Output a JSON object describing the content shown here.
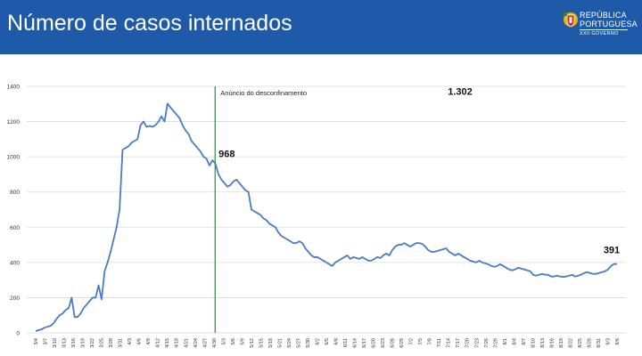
{
  "header": {
    "title": "Número de casos internados",
    "logo": {
      "line1": "REPÚBLICA",
      "line2": "PORTUGUESA",
      "line3": "XXII GOVERNO",
      "mark_icon": "portuguese-coat-of-arms-icon"
    },
    "bg_color": "#1f5aa8"
  },
  "chart_data": {
    "type": "line",
    "title": "",
    "xlabel": "",
    "ylabel": "",
    "ylim": [
      0,
      1400
    ],
    "y_ticks": [
      "0",
      "200",
      "400",
      "600",
      "800",
      "1000",
      "1200",
      "1400"
    ],
    "grid": true,
    "legend": "none",
    "line_color": "#4a7bc4",
    "annotation_line_color": "#22b14c",
    "x_ticks": [
      "3/4",
      "3/7",
      "3/10",
      "3/13",
      "3/16",
      "3/19",
      "3/22",
      "3/25",
      "3/28",
      "3/31",
      "4/3",
      "4/6",
      "4/9",
      "4/12",
      "4/15",
      "4/18",
      "4/21",
      "4/24",
      "4/27",
      "4/30",
      "5/3",
      "5/6",
      "5/9",
      "5/12",
      "5/15",
      "5/18",
      "5/21",
      "5/24",
      "5/27",
      "5/30",
      "6/2",
      "6/5",
      "6/8",
      "6/11",
      "6/14",
      "6/17",
      "6/20",
      "6/23",
      "6/26",
      "6/29",
      "7/2",
      "7/5",
      "7/8",
      "7/11",
      "7/14",
      "7/17",
      "7/20",
      "7/23",
      "7/26",
      "7/29",
      "8/1",
      "8/4",
      "8/7",
      "8/10",
      "8/13",
      "8/16",
      "8/19",
      "8/22",
      "8/25",
      "8/28",
      "8/31",
      "9/3",
      "9/6"
    ],
    "series": [
      {
        "values": [
          10,
          15,
          20,
          30,
          35,
          40,
          55,
          80,
          100,
          110,
          130,
          140,
          200,
          90,
          90,
          110,
          140,
          160,
          180,
          200,
          200,
          270,
          190,
          350,
          400,
          460,
          530,
          600,
          700,
          1040,
          1050,
          1060,
          1080,
          1090,
          1100,
          1180,
          1200,
          1170,
          1175,
          1170,
          1180,
          1200,
          1230,
          1200,
          1302,
          1280,
          1260,
          1240,
          1220,
          1180,
          1150,
          1130,
          1090,
          1070,
          1050,
          1030,
          1000,
          990,
          950,
          980,
          960,
          900,
          870,
          850,
          830,
          840,
          860,
          870,
          850,
          830,
          810,
          800,
          700,
          690,
          680,
          670,
          650,
          640,
          620,
          610,
          600,
          570,
          550,
          540,
          530,
          520,
          510,
          510,
          520,
          510,
          480,
          460,
          440,
          430,
          430,
          420,
          410,
          400,
          390,
          380,
          400,
          410,
          420,
          430,
          440,
          420,
          430,
          425,
          420,
          430,
          420,
          410,
          410,
          420,
          430,
          425,
          440,
          450,
          440,
          470,
          490,
          500,
          500,
          510,
          500,
          490,
          500,
          510,
          510,
          505,
          490,
          470,
          460,
          460,
          465,
          470,
          475,
          480,
          460,
          450,
          440,
          450,
          440,
          430,
          420,
          410,
          405,
          400,
          410,
          400,
          395,
          390,
          380,
          375,
          380,
          390,
          380,
          370,
          360,
          355,
          360,
          370,
          365,
          360,
          355,
          350,
          330,
          325,
          330,
          335,
          330,
          330,
          320,
          320,
          325,
          320,
          318,
          320,
          325,
          330,
          320,
          325,
          330,
          340,
          345,
          340,
          335,
          335,
          340,
          345,
          350,
          360,
          380,
          391,
          391
        ]
      }
    ],
    "annotations": [
      {
        "text": "1.302",
        "index": 144,
        "value": 1302
      },
      {
        "text": "968",
        "index": 211,
        "value": 968
      },
      {
        "text": "391",
        "index": 190,
        "value": 391
      },
      {
        "text": "Anúncio do desconfinamento",
        "type": "vline",
        "at_tick": "4/30"
      }
    ]
  }
}
